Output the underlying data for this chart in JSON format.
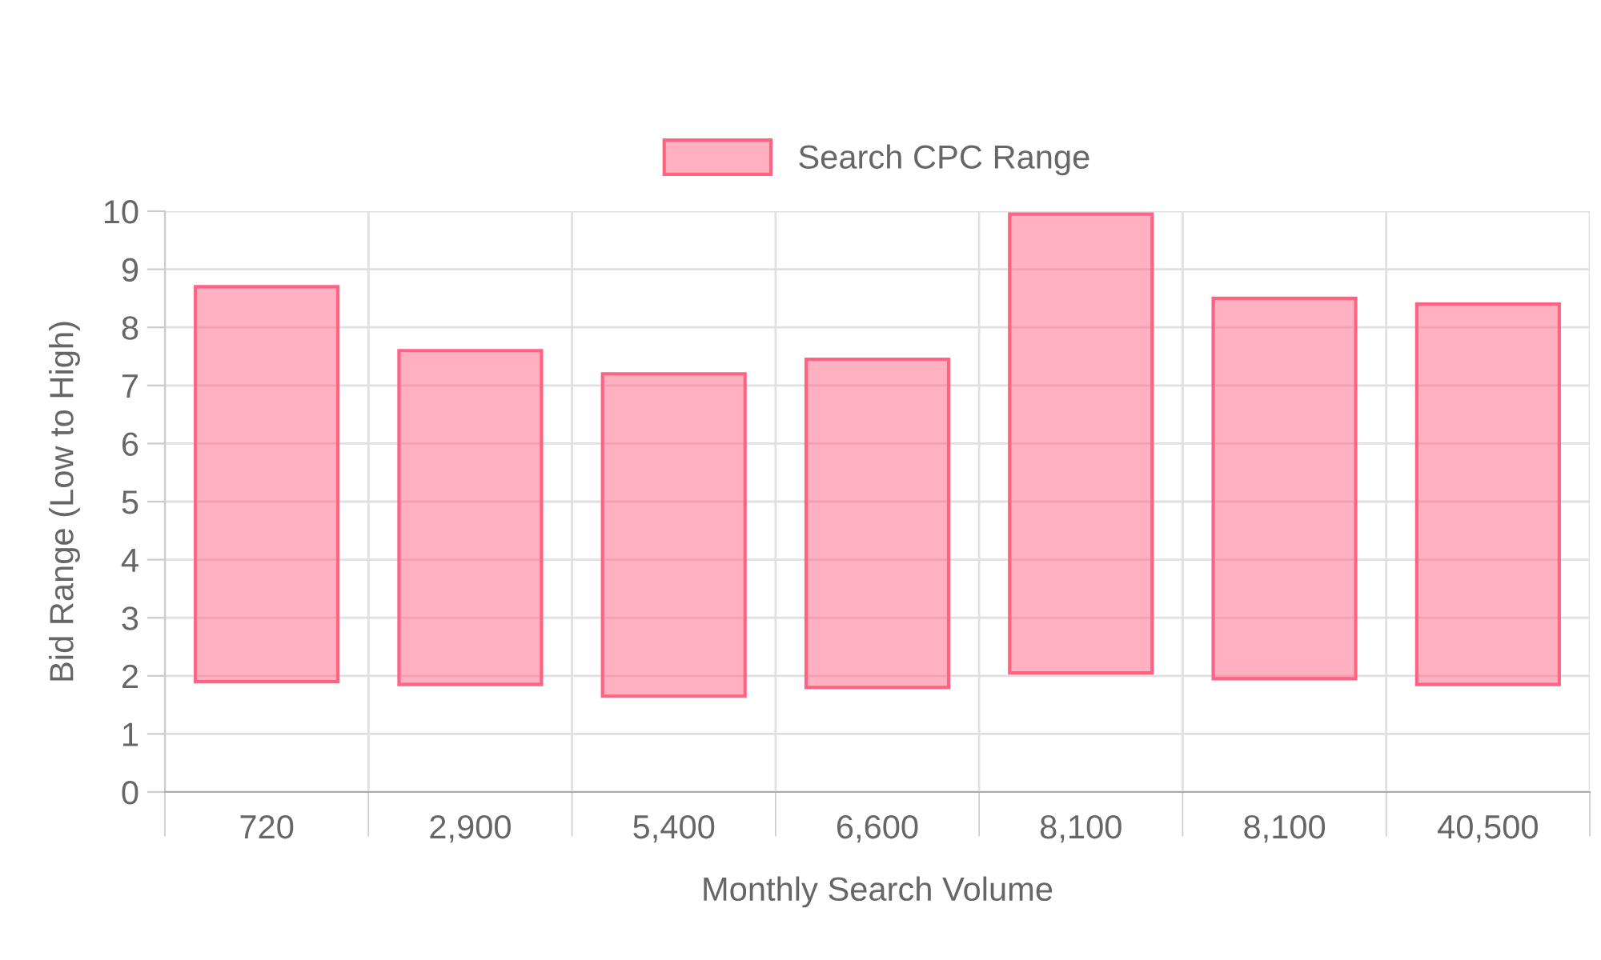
{
  "chart_data": {
    "type": "bar",
    "xlabel": "Monthly Search Volume",
    "ylabel": "Bid Range (Low to High)",
    "categories": [
      "720",
      "2,900",
      "5,400",
      "6,600",
      "8,100",
      "8,100",
      "40,500"
    ],
    "series": [
      {
        "name": "Search CPC Range",
        "color": "#ff6384",
        "values": [
          6.8,
          5.75,
          5.55,
          5.65,
          7.9,
          6.55,
          6.55
        ],
        "base": [
          1.9,
          1.85,
          1.65,
          1.8,
          2.05,
          1.95,
          1.85
        ]
      }
    ],
    "ylim": [
      0,
      10
    ],
    "yticks": [
      0,
      1,
      2,
      3,
      4,
      5,
      6,
      7,
      8,
      9,
      10
    ],
    "grid": true,
    "legend": "top"
  }
}
